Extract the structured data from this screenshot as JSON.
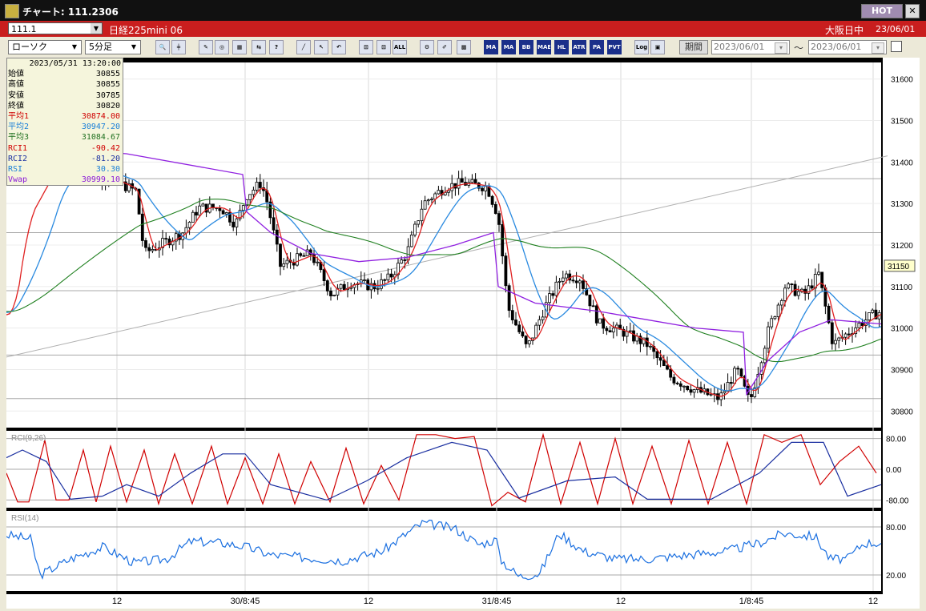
{
  "window": {
    "title": "チャート: 111.2306",
    "hot_label": "HOT",
    "close_label": "✕"
  },
  "infobar": {
    "code": "111.1",
    "instrument": "日経225mini 06",
    "session": "大阪日中",
    "date": "23/06/01"
  },
  "toolbar": {
    "chart_type": "ローソク",
    "interval": "5分足",
    "buttons": [
      {
        "name": "zoom-icon",
        "label": "🔍"
      },
      {
        "name": "cursor-icon",
        "label": "╪"
      },
      {
        "name": "tool-a-icon",
        "label": "✎"
      },
      {
        "name": "tool-b-icon",
        "label": "◎"
      },
      {
        "name": "tool-c-icon",
        "label": "▦"
      },
      {
        "name": "tool-d-icon",
        "label": "⇆"
      },
      {
        "name": "tool-e-icon",
        "label": "?"
      },
      {
        "name": "draw-line-icon",
        "label": "╱"
      },
      {
        "name": "arrow-icon",
        "label": "↖"
      },
      {
        "name": "undo-icon",
        "label": "↶"
      },
      {
        "name": "tool-f-icon",
        "label": "⊡"
      },
      {
        "name": "tool-g-icon",
        "label": "⊡"
      },
      {
        "name": "all-button",
        "label": "ALL"
      },
      {
        "name": "settings-icon",
        "label": "⚙"
      },
      {
        "name": "pen-icon",
        "label": "✐"
      },
      {
        "name": "color-icon",
        "label": "▩"
      },
      {
        "name": "ma-alt-button",
        "label": "MA"
      },
      {
        "name": "ma-button",
        "label": "MA"
      },
      {
        "name": "bb-button",
        "label": "BB"
      },
      {
        "name": "mae-button",
        "label": "MAE"
      },
      {
        "name": "hl-button",
        "label": "HL"
      },
      {
        "name": "atr-button",
        "label": "ATR"
      },
      {
        "name": "para-button",
        "label": "PA"
      },
      {
        "name": "pvt-button",
        "label": "PVT"
      },
      {
        "name": "log-button",
        "label": "Log"
      },
      {
        "name": "export-icon",
        "label": "▣"
      }
    ],
    "period_label": "期間",
    "date_from": "2023/06/01",
    "date_to": "2023/06/01",
    "tilde": "～"
  },
  "infobox": {
    "timestamp": "2023/05/31  13:20:00",
    "rows": [
      {
        "label": "始値",
        "value": "30855",
        "color": "#000000"
      },
      {
        "label": "高値",
        "value": "30855",
        "color": "#000000"
      },
      {
        "label": "安値",
        "value": "30785",
        "color": "#000000"
      },
      {
        "label": "終値",
        "value": "30820",
        "color": "#000000"
      },
      {
        "label": "平均1",
        "value": "30874.00",
        "color": "#d00000"
      },
      {
        "label": "平均2",
        "value": "30947.20",
        "color": "#1a7fd8"
      },
      {
        "label": "平均3",
        "value": "31084.67",
        "color": "#207020"
      },
      {
        "label": "RCI1",
        "value": "-90.42",
        "color": "#d00000"
      },
      {
        "label": "RCI2",
        "value": "-81.20",
        "color": "#1a2fa0"
      },
      {
        "label": "RSI",
        "value": "30.30",
        "color": "#1a7fd8"
      },
      {
        "label": "Vwap",
        "value": "30999.10",
        "color": "#8a1ad8"
      }
    ]
  },
  "chart_data": [
    {
      "type": "candlestick",
      "ylim": [
        30760,
        31640
      ],
      "y_ticks": [
        30800,
        30900,
        31000,
        31100,
        31200,
        31300,
        31400,
        31500,
        31600
      ],
      "current_price_label": "31150",
      "x_tick_labels": [
        "12",
        "30/8:45",
        "12",
        "31/8:45",
        "12",
        "1/8:45",
        "12"
      ],
      "overlays": [
        {
          "name": "平均1",
          "color": "#e02020"
        },
        {
          "name": "平均2",
          "color": "#2a8ae0"
        },
        {
          "name": "平均3",
          "color": "#208020"
        },
        {
          "name": "Vwap",
          "color": "#9020e0"
        }
      ],
      "trendline": {
        "from": [
          0,
          30930
        ],
        "to": [
          1,
          31415
        ]
      },
      "hlines": [
        31360,
        31230,
        31090,
        30935,
        30830
      ]
    },
    {
      "type": "line",
      "title": "RCI(9,26)",
      "ylim": [
        -100,
        100
      ],
      "y_ticks": [
        80,
        0,
        -80
      ],
      "y_tick_labels": [
        "80.00",
        "0.00",
        "-80.00"
      ]
    },
    {
      "type": "line",
      "title": "RSI(14)",
      "ylim": [
        0,
        100
      ],
      "y_ticks": [
        80,
        20
      ],
      "y_tick_labels": [
        "80.00",
        "20.00"
      ]
    }
  ]
}
